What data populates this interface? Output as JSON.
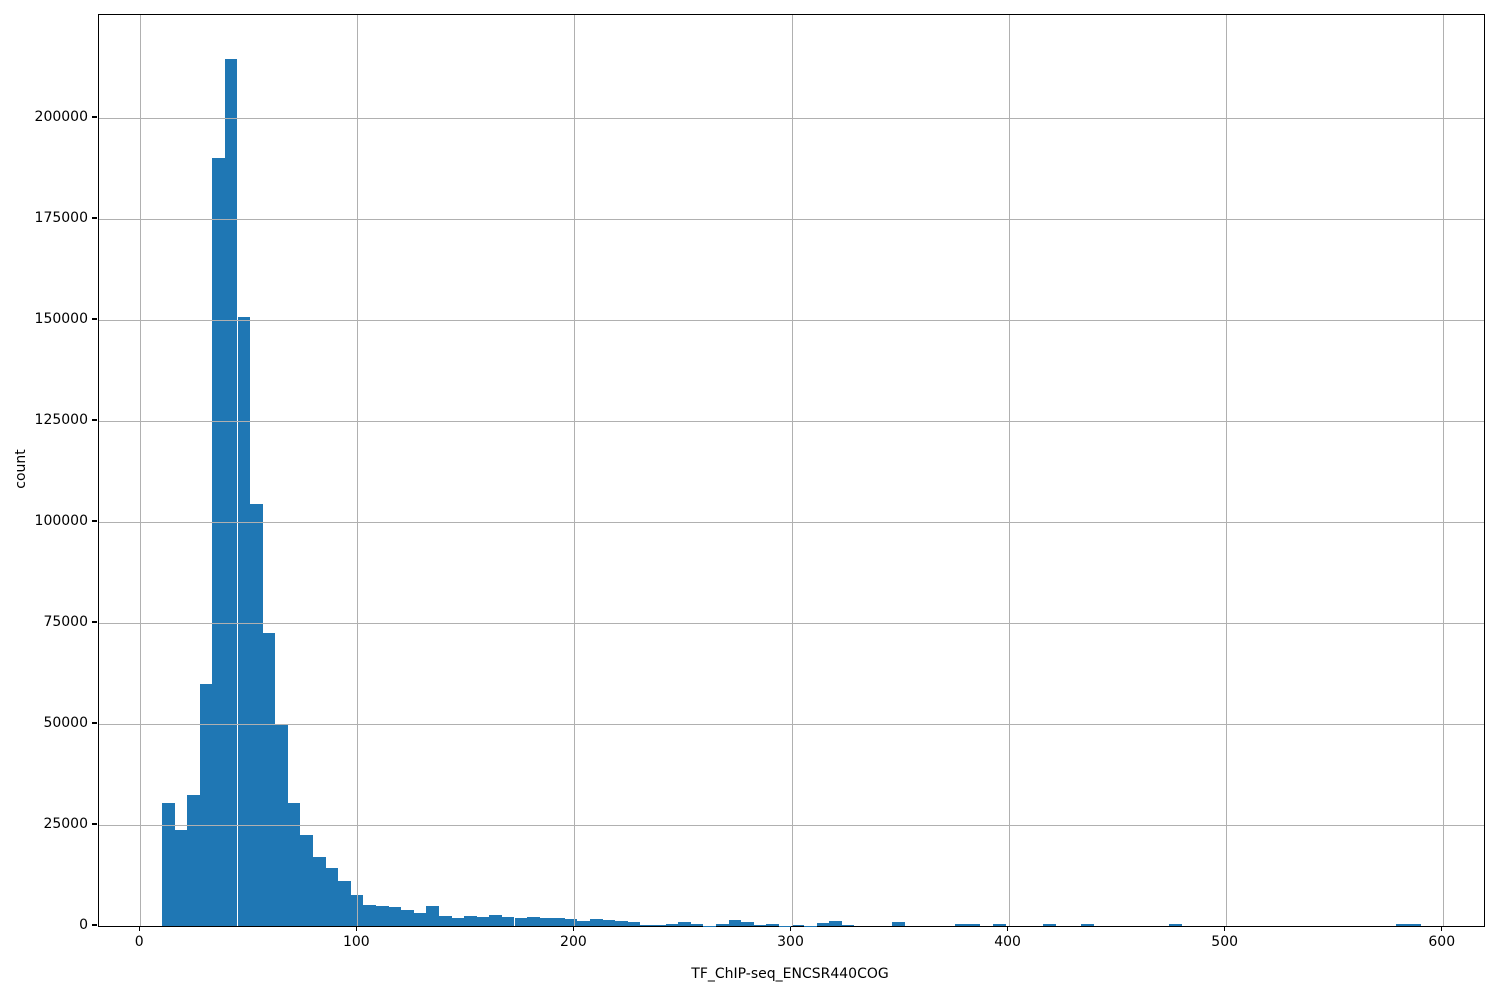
{
  "chart_data": {
    "type": "bar",
    "subtype": "histogram",
    "title": "",
    "xlabel": "TF_ChIP-seq_ENCSR440COG",
    "ylabel": "count",
    "bar_color": "#1f77b4",
    "grid": true,
    "grid_color": "#b0b0b0",
    "legend": "none",
    "xlim": [
      -19,
      619
    ],
    "ylim": [
      0,
      225500
    ],
    "xticks": [
      0,
      100,
      200,
      300,
      400,
      500,
      600
    ],
    "yticks": [
      0,
      25000,
      50000,
      75000,
      100000,
      125000,
      150000,
      175000,
      200000
    ],
    "bins": {
      "start": 10,
      "width": 5.8,
      "counts": [
        30500,
        23800,
        32500,
        60000,
        190000,
        214500,
        150800,
        104400,
        72500,
        50000,
        30400,
        22500,
        17200,
        14300,
        11200,
        7800,
        5100,
        4900,
        4700,
        3900,
        3300,
        5000,
        2500,
        1900,
        2500,
        2200,
        2700,
        2300,
        2100,
        2200,
        1900,
        2100,
        1650,
        1350,
        1700,
        1450,
        1250,
        1000,
        200,
        200,
        600,
        900,
        400,
        100,
        600,
        1400,
        1100,
        150,
        500,
        100,
        350,
        100,
        700,
        1200,
        150,
        0,
        0,
        0,
        900,
        0,
        0,
        0,
        0,
        400,
        400,
        0,
        580,
        0,
        0,
        0,
        420,
        0,
        0,
        500,
        0,
        0,
        0,
        0,
        0,
        0,
        470,
        0,
        0,
        0,
        0,
        0,
        0,
        0,
        0,
        0,
        0,
        0,
        0,
        0,
        0,
        0,
        0,
        0,
        400,
        400
      ]
    }
  }
}
